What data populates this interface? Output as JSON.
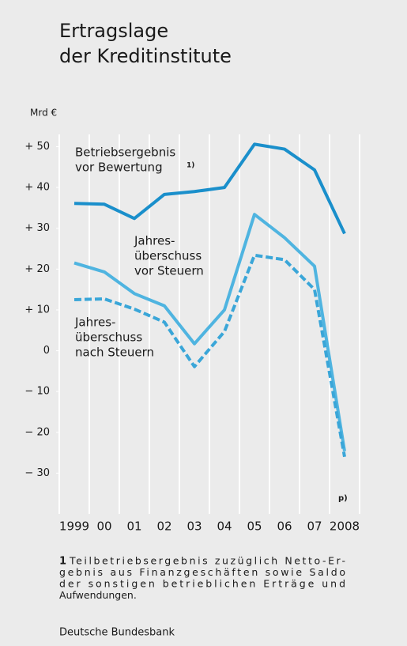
{
  "chart_data": {
    "type": "line",
    "title": [
      "Ertragslage",
      "der Kreditinstitute"
    ],
    "y_unit": "Mrd €",
    "categories": [
      "1999",
      "00",
      "01",
      "02",
      "03",
      "04",
      "05",
      "06",
      "07",
      "2008"
    ],
    "ylim": [
      -40,
      53
    ],
    "yticks": [
      {
        "value": 50,
        "label": "+ 50"
      },
      {
        "value": 40,
        "label": "+ 40"
      },
      {
        "value": 30,
        "label": "+ 30"
      },
      {
        "value": 20,
        "label": "+ 20"
      },
      {
        "value": 10,
        "label": "+ 10"
      },
      0,
      {
        "value": -10,
        "label": "− 10"
      },
      {
        "value": -20,
        "label": "− 20"
      },
      {
        "value": -30,
        "label": "− 30"
      }
    ],
    "series": [
      {
        "label": [
          "Betriebsergebnis",
          "vor Bewertung"
        ],
        "label_note": "1)",
        "color": "#1a8fcb",
        "dashed": false,
        "values": [
          36.1,
          35.9,
          32.4,
          38.3,
          39,
          40,
          50.6,
          49.4,
          44.3,
          28.7
        ]
      },
      {
        "label": [
          "Jahres-",
          "überschuss",
          "vor Steuern"
        ],
        "color": "#4fb4e0",
        "dashed": false,
        "values": [
          21.5,
          19.3,
          14,
          11,
          1.7,
          10,
          33.4,
          27.7,
          20.7,
          -24.6
        ]
      },
      {
        "label": [
          "Jahres-",
          "überschuss",
          "nach Steuern"
        ],
        "color": "#3aa6d8",
        "dashed": true,
        "values": [
          12.5,
          12.7,
          10.2,
          7,
          -3.9,
          4.7,
          23.4,
          22.3,
          15,
          -26
        ]
      }
    ],
    "annotation": "p)",
    "footnote": {
      "number": "1",
      "lines": [
        "Teilbetriebsergebnis zuzüglich Netto-Er-",
        "gebnis aus Finanzgeschäften sowie Saldo",
        "der sonstigen betrieblichen Erträge und",
        "Aufwendungen."
      ]
    },
    "source": "Deutsche Bundesbank"
  }
}
